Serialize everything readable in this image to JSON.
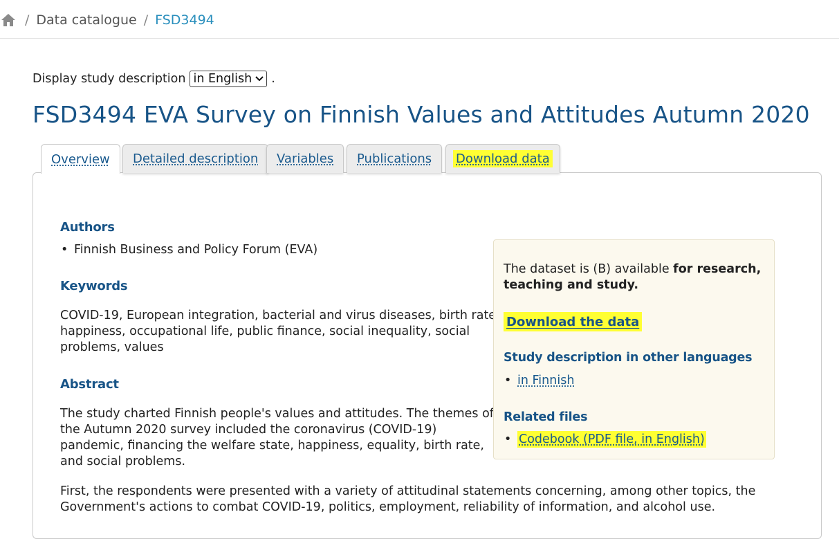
{
  "breadcrumb": {
    "home_icon": "home-icon",
    "items": [
      "Data catalogue",
      "FSD3494"
    ]
  },
  "language": {
    "label": "Display study description",
    "selected": "in English",
    "suffix": "."
  },
  "title": "FSD3494 EVA Survey on Finnish Values and Attitudes Autumn 2020",
  "tabs": [
    {
      "label": "Overview",
      "active": true
    },
    {
      "label": "Detailed description"
    },
    {
      "label": "Variables"
    },
    {
      "label": "Publications"
    },
    {
      "label": "Download data",
      "highlighted": true
    }
  ],
  "overview": {
    "authors_heading": "Authors",
    "authors": [
      "Finnish Business and Policy Forum (EVA)"
    ],
    "keywords_heading": "Keywords",
    "keywords_lines": [
      "COVID-19, European integration, bacterial and virus diseases, birth rate,",
      "happiness, occupational life, public finance, social inequality, social",
      "problems, values"
    ],
    "abstract_heading": "Abstract",
    "abstract_lines": [
      "The study charted Finnish people's values and attitudes. The themes of",
      "the Autumn 2020 survey included the coronavirus (COVID-19)",
      "pandemic, financing the welfare state, happiness, equality, birth rate,",
      "and social problems."
    ],
    "abstract2_lines": [
      "First, the respondents were presented with a variety of attitudinal statements concerning, among other topics, the",
      "Government's actions to combat COVID-19, politics, employment, reliability of information, and alcohol use."
    ]
  },
  "sidebar": {
    "availability_prefix": "The dataset is (B) available ",
    "availability_bold_1": "for research,",
    "availability_bold_2": "teaching and study.",
    "download_link": "Download the data",
    "other_lang_heading": "Study description in other languages",
    "other_lang_link": "in Finnish",
    "related_heading": "Related files",
    "related_link": "Codebook (PDF file, in English)"
  },
  "colors": {
    "title": "#185487",
    "link": "#1a5a8e",
    "highlight": "#ffff33",
    "sidebar_bg": "#fcf9ee"
  }
}
